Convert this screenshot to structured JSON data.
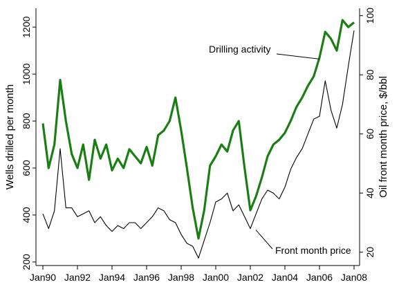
{
  "chart_data": {
    "type": "line",
    "title": "",
    "grid": false,
    "legend": "none",
    "x_range": [
      "1990-01",
      "2008-01"
    ],
    "x_ticks": [
      "Jan90",
      "Jan92",
      "Jan94",
      "Jan96",
      "Jan98",
      "Jan00",
      "Jan02",
      "Jan04",
      "Jan06",
      "Jan08"
    ],
    "y_left": {
      "label": "Wells drilled per month",
      "range": [
        185,
        1280
      ],
      "ticks": [
        200,
        400,
        600,
        800,
        1000,
        1200
      ]
    },
    "y_right": {
      "label": "Oil front month price, $/bbl",
      "range": [
        15.5,
        102.5
      ],
      "ticks": [
        20,
        40,
        60,
        80,
        100
      ]
    },
    "annotations": [
      {
        "text": "Drilling activity",
        "points_to": "drilling"
      },
      {
        "text": "Front month price",
        "points_to": "price"
      }
    ],
    "colors": {
      "drilling": "#1a7f12",
      "price": "#000000"
    },
    "series": [
      {
        "key": "drilling",
        "axis": "left",
        "x": [
          "1990-01",
          "1990-05",
          "1990-09",
          "1991-01",
          "1991-05",
          "1991-09",
          "1992-01",
          "1992-05",
          "1992-09",
          "1993-01",
          "1993-05",
          "1993-09",
          "1994-01",
          "1994-05",
          "1994-09",
          "1995-01",
          "1995-05",
          "1995-09",
          "1996-01",
          "1996-05",
          "1996-09",
          "1997-01",
          "1997-05",
          "1997-09",
          "1998-01",
          "1998-05",
          "1998-09",
          "1999-01",
          "1999-05",
          "1999-09",
          "2000-01",
          "2000-05",
          "2000-09",
          "2001-01",
          "2001-05",
          "2001-09",
          "2002-01",
          "2002-05",
          "2002-09",
          "2003-01",
          "2003-05",
          "2003-09",
          "2004-01",
          "2004-05",
          "2004-09",
          "2005-01",
          "2005-05",
          "2005-09",
          "2006-01",
          "2006-05",
          "2006-09",
          "2007-01",
          "2007-05",
          "2007-09",
          "2008-01"
        ],
        "y": [
          790,
          600,
          700,
          975,
          800,
          660,
          600,
          700,
          550,
          720,
          640,
          700,
          590,
          640,
          600,
          680,
          650,
          620,
          690,
          610,
          740,
          760,
          800,
          900,
          760,
          600,
          430,
          300,
          420,
          610,
          650,
          700,
          670,
          760,
          800,
          600,
          420,
          480,
          560,
          650,
          700,
          720,
          750,
          800,
          860,
          900,
          950,
          990,
          1070,
          1180,
          1150,
          1100,
          1230,
          1200,
          1220
        ]
      },
      {
        "key": "price",
        "axis": "right",
        "x": [
          "1990-01",
          "1990-05",
          "1990-09",
          "1991-01",
          "1991-05",
          "1991-09",
          "1992-01",
          "1992-05",
          "1992-09",
          "1993-01",
          "1993-05",
          "1993-09",
          "1994-01",
          "1994-05",
          "1994-09",
          "1995-01",
          "1995-05",
          "1995-09",
          "1996-01",
          "1996-05",
          "1996-09",
          "1997-01",
          "1997-05",
          "1997-09",
          "1998-01",
          "1998-05",
          "1998-09",
          "1999-01",
          "1999-05",
          "1999-09",
          "2000-01",
          "2000-05",
          "2000-09",
          "2001-01",
          "2001-05",
          "2001-09",
          "2002-01",
          "2002-05",
          "2002-09",
          "2003-01",
          "2003-05",
          "2003-09",
          "2004-01",
          "2004-05",
          "2004-09",
          "2005-01",
          "2005-05",
          "2005-09",
          "2006-01",
          "2006-05",
          "2006-09",
          "2007-01",
          "2007-05",
          "2007-09",
          "2008-01"
        ],
        "y": [
          33,
          28,
          34,
          55,
          35,
          35,
          32,
          33,
          34,
          30,
          32,
          29,
          27,
          29,
          28,
          30,
          30,
          28,
          30,
          32,
          35,
          34,
          31,
          30,
          26,
          23,
          22,
          18,
          24,
          30,
          37,
          38,
          40,
          34,
          36,
          32,
          28,
          33,
          38,
          41,
          40,
          38,
          42,
          48,
          52,
          55,
          60,
          65,
          66,
          78,
          68,
          62,
          70,
          83,
          95
        ]
      }
    ]
  }
}
